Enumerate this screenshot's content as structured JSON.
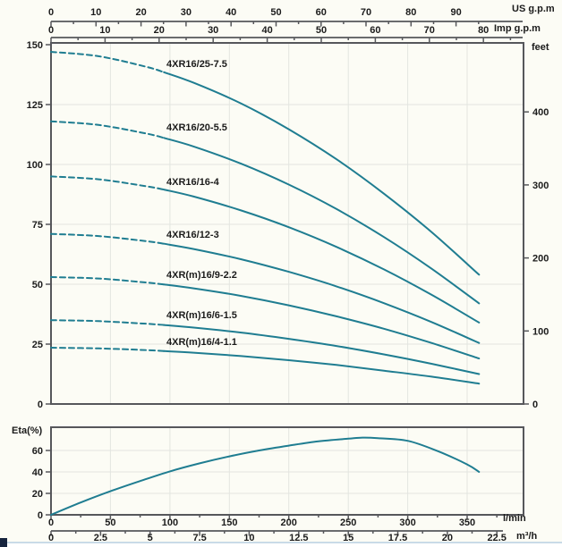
{
  "colors": {
    "background": "#fcfcf5",
    "curve": "#1f7d91",
    "grid": "#e3e5e0",
    "axis": "#56575b",
    "text": "#1b1b1b",
    "page_edge_line": "#c9dbe7",
    "corner_mark": "#16243e"
  },
  "chart_data": [
    {
      "id": "head-capacity",
      "type": "line",
      "x_axes": [
        {
          "unit": "US g.p.m",
          "ticks": [
            0,
            10,
            20,
            30,
            40,
            50,
            60,
            70,
            80,
            90
          ]
        },
        {
          "unit": "Imp g.p.m",
          "ticks": [
            0,
            10,
            20,
            30,
            40,
            50,
            60,
            70,
            80
          ]
        }
      ],
      "y_left": {
        "unit": "",
        "ticks": [
          0,
          25,
          50,
          75,
          100,
          125,
          150
        ],
        "range_m": [
          0,
          150
        ]
      },
      "y_right": {
        "unit": "feet",
        "ticks": [
          0,
          100,
          200,
          300,
          400
        ]
      },
      "flow_lpm_samples": [
        0,
        40,
        80,
        95,
        120,
        160,
        200,
        240,
        280,
        320,
        360
      ],
      "dashed_until_lpm": 95,
      "series": [
        {
          "label": "4XR16/25-7.5",
          "head_m": [
            147,
            145.2,
            140.8,
            138.5,
            134.1,
            125.4,
            114.7,
            102.2,
            87.8,
            71.8,
            54
          ]
        },
        {
          "label": "4XR16/20-5.5",
          "head_m": [
            118,
            116.5,
            112.9,
            111.1,
            107.5,
            100.3,
            91.6,
            81.4,
            69.7,
            56.5,
            42
          ]
        },
        {
          "label": "4XR16/16-4",
          "head_m": [
            95,
            93.8,
            90.9,
            89.5,
            86.6,
            80.8,
            73.8,
            65.6,
            56.2,
            45.6,
            34
          ]
        },
        {
          "label": "4XR16/12-3",
          "head_m": [
            71,
            70.1,
            68,
            66.9,
            64.7,
            60.4,
            55.2,
            49.1,
            42.1,
            34.2,
            25.5
          ]
        },
        {
          "label": "4XR(m)16/9-2.2",
          "head_m": [
            53,
            52.4,
            50.7,
            49.9,
            48.3,
            45.1,
            41.2,
            36.6,
            31.4,
            25.5,
            19
          ]
        },
        {
          "label": "4XR(m)16/6-1.5",
          "head_m": [
            35,
            34.6,
            33.5,
            33,
            31.9,
            29.8,
            27.2,
            24.2,
            20.7,
            16.8,
            12.5
          ]
        },
        {
          "label": "4XR(m)16/4-1.1",
          "head_m": [
            23.5,
            23.2,
            22.5,
            22.1,
            21.4,
            20,
            18.3,
            16.3,
            13.9,
            11.4,
            8.5
          ]
        }
      ]
    },
    {
      "id": "efficiency",
      "type": "line",
      "ylabel": "Eta(%)",
      "y_ticks": [
        0,
        20,
        40,
        60
      ],
      "x_axes": [
        {
          "unit": "l/min",
          "ticks": [
            0,
            50,
            100,
            150,
            200,
            250,
            300,
            350
          ]
        },
        {
          "unit": "m³/h",
          "ticks": [
            0,
            2.5,
            5,
            7.5,
            10,
            12.5,
            15,
            17.5,
            20,
            22.5
          ]
        }
      ],
      "curve": {
        "q_lpm": [
          0,
          25,
          50,
          75,
          100,
          125,
          150,
          175,
          200,
          225,
          250,
          262,
          275,
          300,
          325,
          350,
          360
        ],
        "eta_pct": [
          0,
          11.5,
          22,
          31.5,
          40.5,
          48,
          54.5,
          60,
          64.5,
          68.5,
          71,
          72,
          71.5,
          69,
          59.5,
          47,
          40
        ]
      }
    }
  ]
}
